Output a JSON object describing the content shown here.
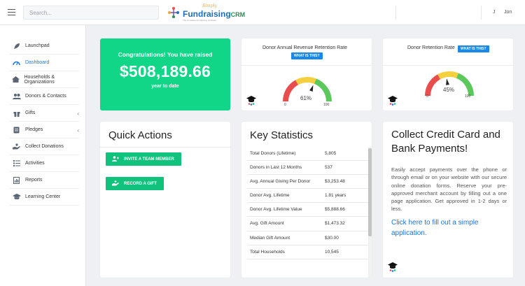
{
  "header": {
    "search_placeholder": "Search...",
    "logo": {
      "tagline": "Simply",
      "name": "Fundraising",
      "suffix": "CRM",
      "subtitle": "The Complete Fundraising Software"
    },
    "user_initial": "J",
    "user_name": "Jon"
  },
  "sidebar": {
    "items": [
      {
        "label": "Launchpad",
        "icon": "rocket-icon"
      },
      {
        "label": "Dashboard",
        "icon": "dashboard-icon",
        "active": true
      },
      {
        "label": "Households & Organizations",
        "icon": "house-icon"
      },
      {
        "label": "Donors & Contacts",
        "icon": "users-icon"
      },
      {
        "label": "Gifts",
        "icon": "gift-icon",
        "has_children": true
      },
      {
        "label": "Pledges",
        "icon": "pledge-icon",
        "has_children": true
      },
      {
        "label": "Collect Donations",
        "icon": "hand-icon"
      },
      {
        "label": "Activities",
        "icon": "list-icon"
      },
      {
        "label": "Reports",
        "icon": "report-icon"
      },
      {
        "label": "Learning Center",
        "icon": "graduation-cap-icon"
      }
    ]
  },
  "congrats": {
    "line1": "Congratulations! You have raised",
    "amount": "$508,189.66",
    "line3": "year to date"
  },
  "gauges": [
    {
      "title": "Donor Annual Revenue Retention Rate",
      "pill": "WHAT IS THIS?",
      "value": 61,
      "value_label": "61%",
      "min_label": "0",
      "max_label": "100"
    },
    {
      "title": "Donor Retention Rate",
      "pill": "WHAT IS THIS?",
      "value": 45,
      "value_label": "45%",
      "min_label": "0",
      "max_label": "100"
    }
  ],
  "quick_actions": {
    "title": "Quick Actions",
    "buttons": [
      {
        "label": "INVITE A TEAM MEMBER",
        "icon": "add-user-icon"
      },
      {
        "label": "RECORD A GIFT",
        "icon": "record-gift-icon"
      }
    ]
  },
  "key_statistics": {
    "title": "Key Statistics",
    "rows": [
      {
        "label": "Total Donors (Lifetime)",
        "value": "5,805"
      },
      {
        "label": "Donors in Last 12 Months",
        "value": "537"
      },
      {
        "label": "Avg. Annual Giving Per Donor",
        "value": "$3,253.48"
      },
      {
        "label": "Donor Avg. Lifetime",
        "value": "1.81 years"
      },
      {
        "label": "Donor Avg. Lifetime Value",
        "value": "$5,888.66"
      },
      {
        "label": "Avg. Gift Amount",
        "value": "$1,473.32"
      },
      {
        "label": "Median Gift Amount",
        "value": "$30.00"
      },
      {
        "label": "Total Households",
        "value": "10,545"
      }
    ]
  },
  "credit_card": {
    "title": "Collect Credit Card and Bank Payments!",
    "text": "Easily accept payments over the phone or through email or on your website with our secure online donation forms. Reserve your pre-approved merchant account by filling out a one page application. Get approved in 1-2 days or less.",
    "link": "Click here to fill out a simple application."
  },
  "colors": {
    "accent": "#1d72d8",
    "green": "#11d688",
    "button_green": "#11c27c",
    "gauge_red": "#e84c4c",
    "gauge_yellow": "#f4d03f",
    "gauge_green": "#5cc85c"
  }
}
